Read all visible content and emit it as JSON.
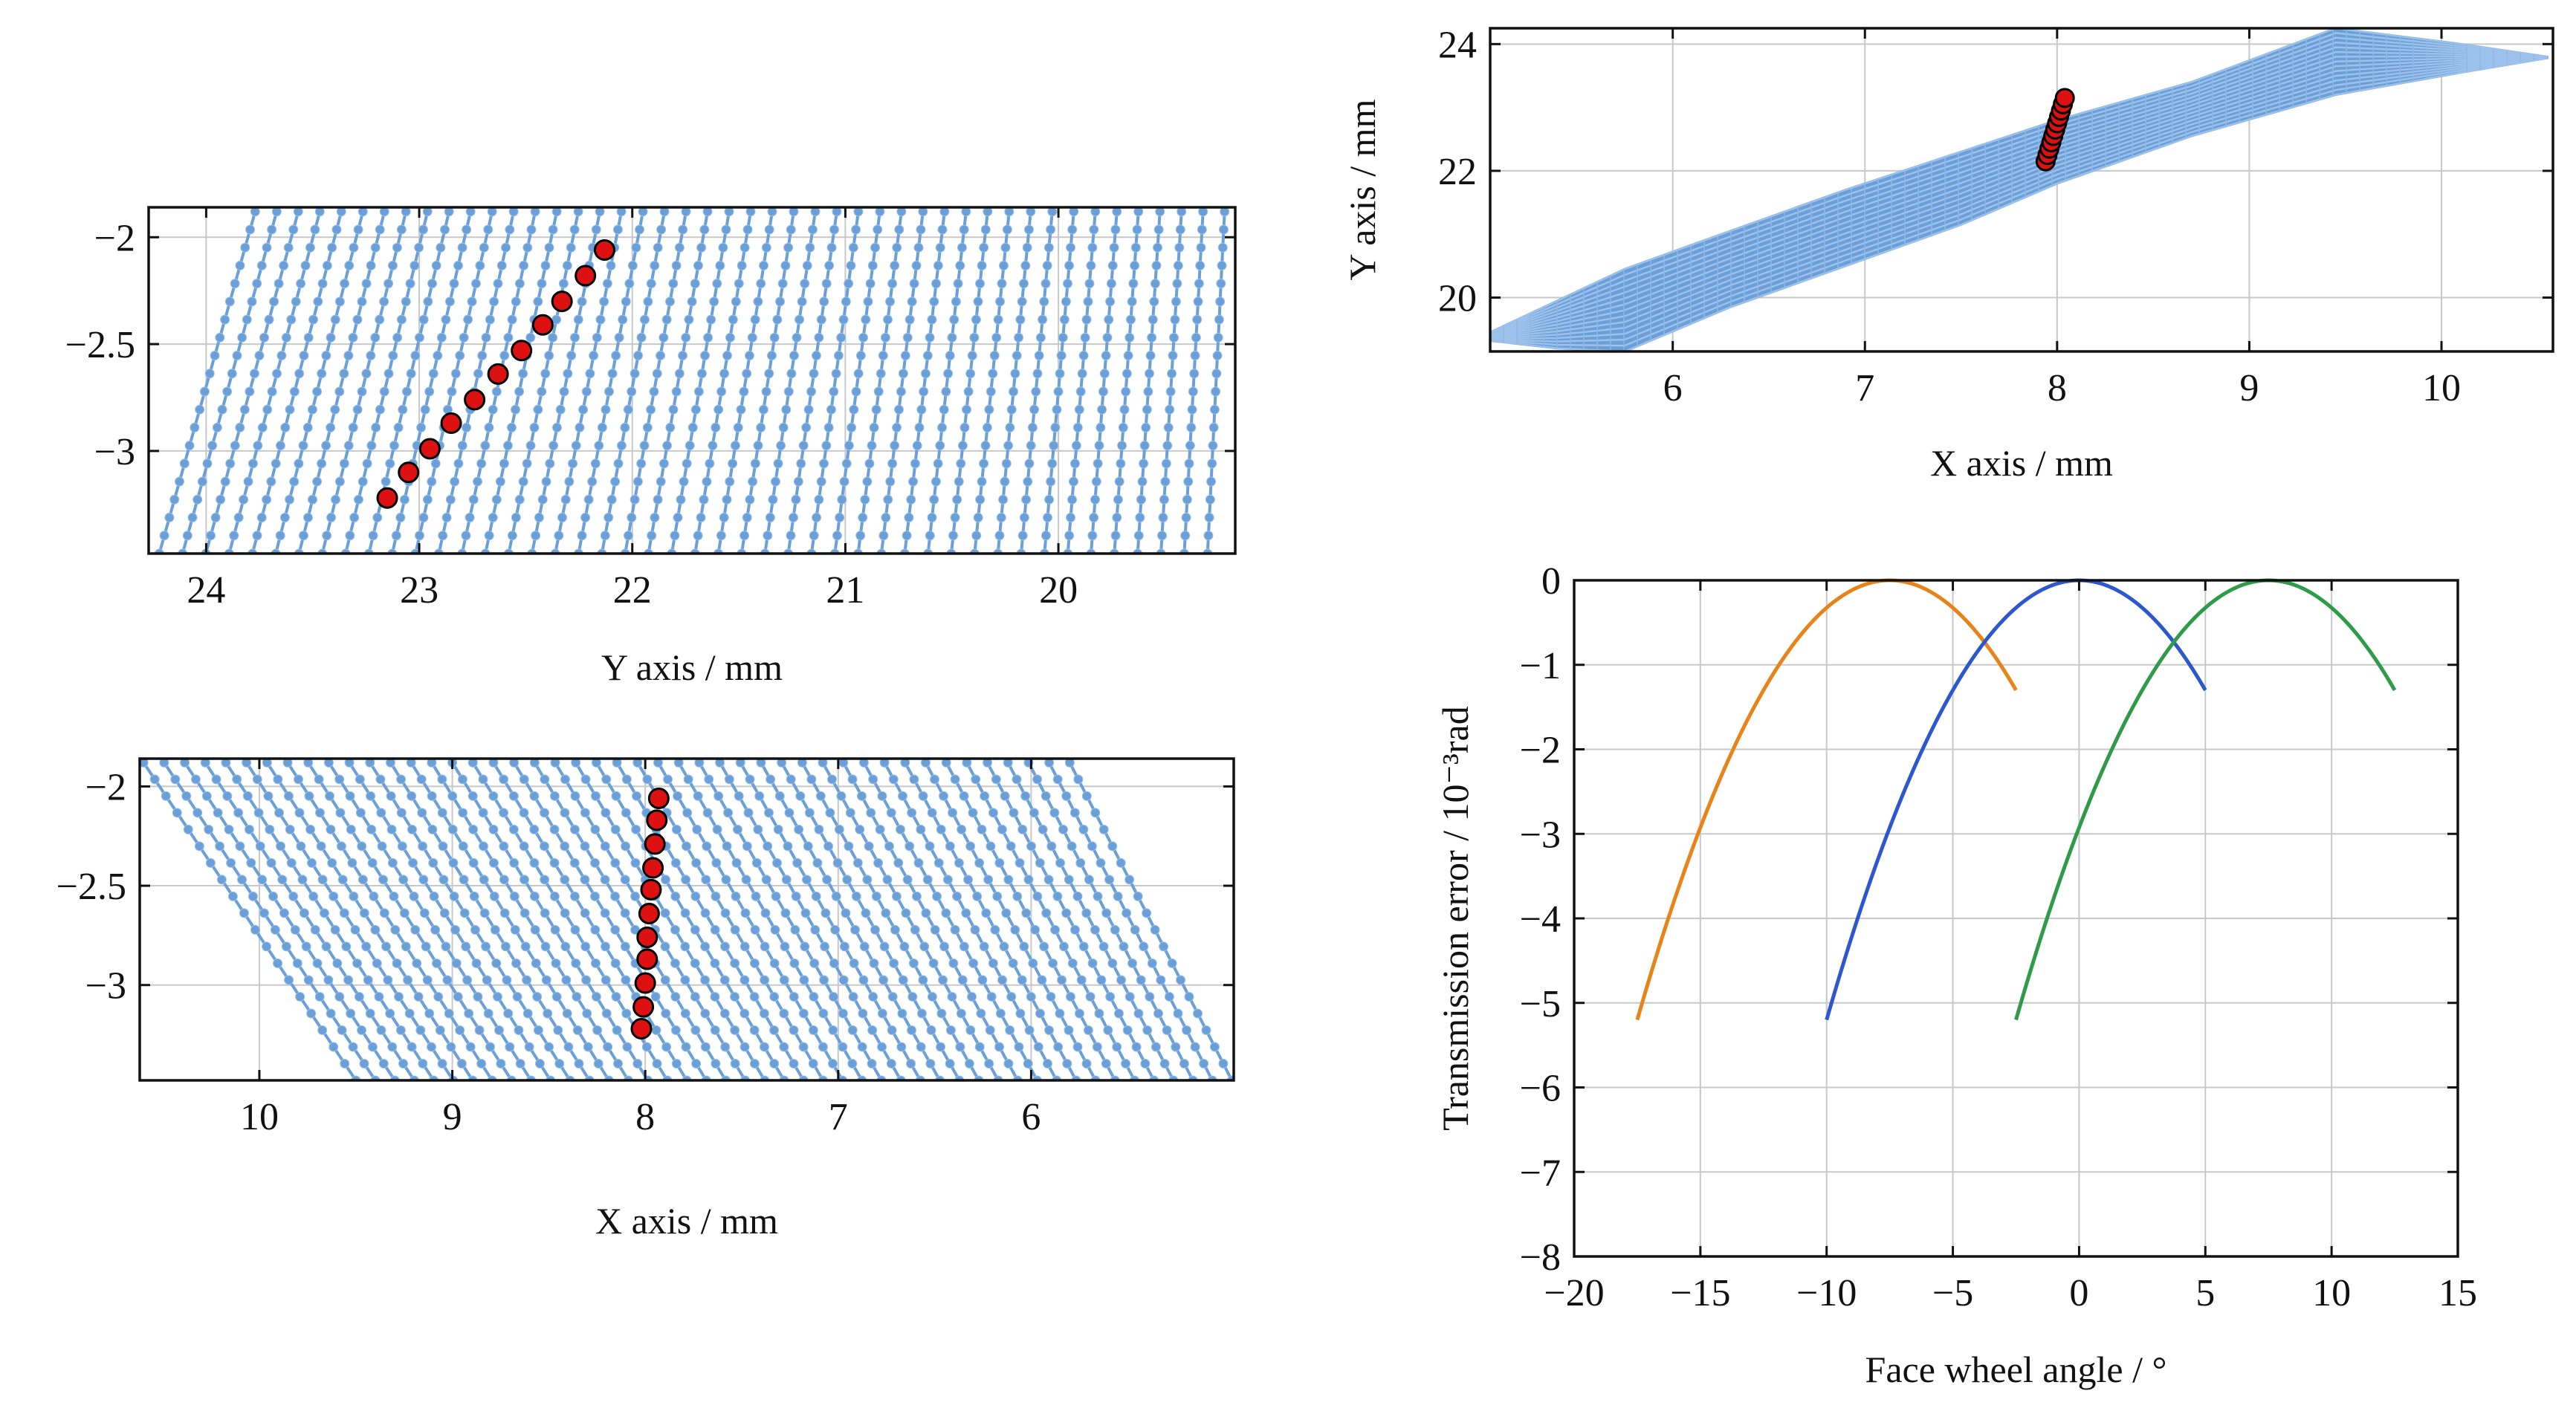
{
  "colors": {
    "mesh": "#6a9fd8",
    "contact": "#dd1111",
    "frame": "#111111",
    "grid": "#c8c8c8"
  },
  "chart_data": [
    {
      "id": "yz",
      "type": "scatter",
      "title": "",
      "xlabel": "Y axis / mm",
      "ylabel": "",
      "xlim": [
        24.27,
        19.17
      ],
      "ylim": [
        -3.48,
        -1.86
      ],
      "xticks": [
        24,
        23,
        22,
        21,
        20
      ],
      "xtick_labels": [
        "24",
        "23",
        "22",
        "21",
        "20"
      ],
      "yticks": [
        -2,
        -2.5,
        -3
      ],
      "ytick_labels": [
        "−2",
        "−2.5",
        "−3"
      ],
      "grid": true,
      "series": [
        {
          "name": "tooth surface mesh",
          "kind": "mesh",
          "corners": {
            "lower_far": 24.22,
            "lower_near": 19.3,
            "upper_far": 23.77,
            "upper_near": 19.22
          },
          "y_range": [
            -3.48,
            -1.88
          ],
          "lines": 46,
          "dots_per_line": 20
        },
        {
          "name": "contact points",
          "x": [
            23.15,
            23.05,
            22.95,
            22.85,
            22.74,
            22.63,
            22.52,
            22.42,
            22.33,
            22.22,
            22.13
          ],
          "y": [
            -3.22,
            -3.1,
            -2.99,
            -2.87,
            -2.76,
            -2.64,
            -2.53,
            -2.41,
            -2.3,
            -2.18,
            -2.06
          ]
        }
      ]
    },
    {
      "id": "xy",
      "type": "scatter",
      "title": "",
      "xlabel": "X axis / mm",
      "ylabel": "Y axis / mm",
      "xlim": [
        5.05,
        10.58
      ],
      "ylim": [
        19.15,
        24.25
      ],
      "xticks": [
        6,
        7,
        8,
        9,
        10
      ],
      "xtick_labels": [
        "6",
        "7",
        "8",
        "9",
        "10"
      ],
      "yticks": [
        20,
        22,
        24
      ],
      "ytick_labels": [
        "20",
        "22",
        "24"
      ],
      "grid": true,
      "series": [
        {
          "name": "tooth surface mesh",
          "kind": "band",
          "band": [
            [
              5.05,
              19.32,
              19.45
            ],
            [
              5.4,
              19.2,
              19.95
            ],
            [
              5.75,
              19.15,
              20.45
            ],
            [
              6.3,
              19.85,
              21.05
            ],
            [
              6.9,
              20.5,
              21.7
            ],
            [
              7.5,
              21.15,
              22.3
            ],
            [
              8.0,
              21.8,
              22.8
            ],
            [
              8.7,
              22.55,
              23.4
            ],
            [
              9.45,
              23.2,
              24.25
            ],
            [
              10.1,
              23.55,
              24.0
            ],
            [
              10.55,
              23.78,
              23.8
            ]
          ],
          "rows": 14
        },
        {
          "name": "contact points",
          "x": [
            7.94,
            7.95,
            7.96,
            7.97,
            7.98,
            7.99,
            8.0,
            8.01,
            8.02,
            8.03,
            8.04
          ],
          "y": [
            22.15,
            22.25,
            22.35,
            22.45,
            22.55,
            22.65,
            22.75,
            22.85,
            22.95,
            23.05,
            23.15
          ]
        }
      ]
    },
    {
      "id": "xz",
      "type": "scatter",
      "title": "",
      "xlabel": "X axis / mm",
      "ylabel": "",
      "xlim": [
        10.62,
        4.95
      ],
      "ylim": [
        -3.48,
        -1.86
      ],
      "xticks": [
        10,
        9,
        8,
        7,
        6
      ],
      "xtick_labels": [
        "10",
        "9",
        "8",
        "7",
        "6"
      ],
      "yticks": [
        -2,
        -2.5,
        -3
      ],
      "ytick_labels": [
        "−2",
        "−2.5",
        "−3"
      ],
      "grid": true,
      "series": [
        {
          "name": "tooth surface mesh",
          "kind": "mesh",
          "corners": {
            "lower_far": 9.5,
            "lower_near": 4.96,
            "upper_far": 10.6,
            "upper_near": 5.8
          },
          "y_range": [
            -3.48,
            -1.88
          ],
          "lines": 46,
          "dots_per_line": 20
        },
        {
          "name": "contact points",
          "x": [
            8.02,
            8.01,
            8.0,
            7.99,
            7.99,
            7.98,
            7.97,
            7.96,
            7.95,
            7.94,
            7.93
          ],
          "y": [
            -3.22,
            -3.11,
            -2.99,
            -2.87,
            -2.76,
            -2.64,
            -2.52,
            -2.41,
            -2.29,
            -2.17,
            -2.06
          ]
        }
      ]
    },
    {
      "id": "te",
      "type": "line",
      "title": "",
      "xlabel": "Face wheel angle / °",
      "ylabel": "Transmission error / 10⁻³rad",
      "xlim": [
        -20,
        15
      ],
      "ylim": [
        -8,
        0
      ],
      "xticks": [
        -20,
        -15,
        -10,
        -5,
        0,
        5,
        10,
        15
      ],
      "xtick_labels": [
        "−20",
        "−15",
        "−10",
        "−5",
        "0",
        "5",
        "10",
        "15"
      ],
      "yticks": [
        0,
        -1,
        -2,
        -3,
        -4,
        -5,
        -6,
        -7,
        -8
      ],
      "ytick_labels": [
        "0",
        "−1",
        "−2",
        "−3",
        "−4",
        "−5",
        "−6",
        "−7",
        "−8"
      ],
      "grid": true,
      "series": [
        {
          "name": "pair 1",
          "color": "#e8831a",
          "x0": -17.5,
          "x1": -2.5,
          "vertex": -7.5,
          "y0": -5.2
        },
        {
          "name": "pair 2",
          "color": "#2d57cf",
          "x0": -10.0,
          "x1": 5.0,
          "vertex": 0.0,
          "y0": -5.2
        },
        {
          "name": "pair 3",
          "color": "#2f9a48",
          "x0": -2.5,
          "x1": 12.5,
          "vertex": 7.5,
          "y0": -5.2
        }
      ]
    }
  ]
}
